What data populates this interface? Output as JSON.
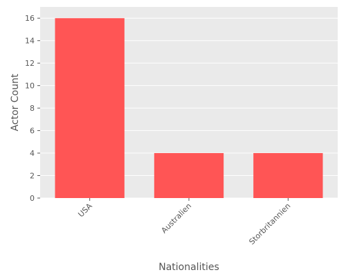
{
  "chart_data": {
    "type": "bar",
    "title": "",
    "xlabel": "Nationalities",
    "ylabel": "Actor Count",
    "categories": [
      "USA",
      "Australien",
      "Storbritannien"
    ],
    "values": [
      16,
      4,
      4
    ],
    "ylim": [
      0,
      17
    ],
    "yticks": [
      0,
      2,
      4,
      6,
      8,
      10,
      12,
      14,
      16
    ],
    "grid": true,
    "colors": {
      "bar": "#FF5555",
      "background": "#EAEAEA",
      "grid": "#FFFFFF",
      "text": "#555555"
    }
  }
}
